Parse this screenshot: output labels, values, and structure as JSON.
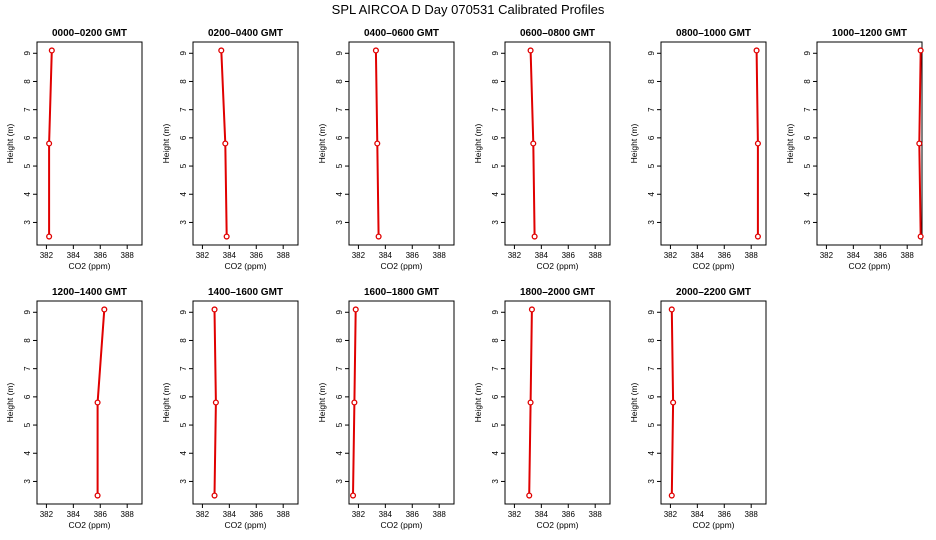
{
  "title": "SPL AIRCOA D  Day 070531  Calibrated Profiles",
  "colors": {
    "profile": "#e00000",
    "axis": "#000000",
    "background": "#ffffff"
  },
  "chart_data": [
    {
      "type": "line",
      "title": "0000–0200 GMT",
      "xlabel": "CO2 (ppm)",
      "ylabel": "Height (m)",
      "xlim": [
        381.3,
        389.1
      ],
      "ylim": [
        2.2,
        9.4
      ],
      "xticks": [
        "382",
        "384",
        "386",
        "388"
      ],
      "yticks": [
        "3",
        "4",
        "5",
        "6",
        "7",
        "8",
        "9"
      ],
      "heights": [
        2.5,
        5.8,
        9.1
      ],
      "co2": [
        382.2,
        382.2,
        382.4
      ],
      "grid": false
    },
    {
      "type": "line",
      "title": "0200–0400 GMT",
      "xlabel": "CO2 (ppm)",
      "ylabel": "Height (m)",
      "xlim": [
        381.3,
        389.1
      ],
      "ylim": [
        2.2,
        9.4
      ],
      "xticks": [
        "382",
        "384",
        "386",
        "388"
      ],
      "yticks": [
        "3",
        "4",
        "5",
        "6",
        "7",
        "8",
        "9"
      ],
      "heights": [
        2.5,
        5.8,
        9.1
      ],
      "co2": [
        383.8,
        383.7,
        383.4
      ],
      "grid": false
    },
    {
      "type": "line",
      "title": "0400–0600 GMT",
      "xlabel": "CO2 (ppm)",
      "ylabel": "Height (m)",
      "xlim": [
        381.3,
        389.1
      ],
      "ylim": [
        2.2,
        9.4
      ],
      "xticks": [
        "382",
        "384",
        "386",
        "388"
      ],
      "yticks": [
        "3",
        "4",
        "5",
        "6",
        "7",
        "8",
        "9"
      ],
      "heights": [
        2.5,
        5.8,
        9.1
      ],
      "co2": [
        383.5,
        383.4,
        383.3
      ],
      "grid": false
    },
    {
      "type": "line",
      "title": "0600–0800 GMT",
      "xlabel": "CO2 (ppm)",
      "ylabel": "Height (m)",
      "xlim": [
        381.3,
        389.1
      ],
      "ylim": [
        2.2,
        9.4
      ],
      "xticks": [
        "382",
        "384",
        "386",
        "388"
      ],
      "yticks": [
        "3",
        "4",
        "5",
        "6",
        "7",
        "8",
        "9"
      ],
      "heights": [
        2.5,
        5.8,
        9.1
      ],
      "co2": [
        383.5,
        383.4,
        383.2
      ],
      "grid": false
    },
    {
      "type": "line",
      "title": "0800–1000 GMT",
      "xlabel": "CO2 (ppm)",
      "ylabel": "Height (m)",
      "xlim": [
        381.3,
        389.1
      ],
      "ylim": [
        2.2,
        9.4
      ],
      "xticks": [
        "382",
        "384",
        "386",
        "388"
      ],
      "yticks": [
        "3",
        "4",
        "5",
        "6",
        "7",
        "8",
        "9"
      ],
      "heights": [
        2.5,
        5.8,
        9.1
      ],
      "co2": [
        388.5,
        388.5,
        388.4
      ],
      "grid": false
    },
    {
      "type": "line",
      "title": "1000–1200 GMT",
      "xlabel": "CO2 (ppm)",
      "ylabel": "Height (m)",
      "xlim": [
        381.3,
        389.1
      ],
      "ylim": [
        2.2,
        9.4
      ],
      "xticks": [
        "382",
        "384",
        "386",
        "388"
      ],
      "yticks": [
        "3",
        "4",
        "5",
        "6",
        "7",
        "8",
        "9"
      ],
      "heights": [
        2.5,
        5.8,
        9.1
      ],
      "co2": [
        389.0,
        388.9,
        389.0
      ],
      "grid": false
    },
    {
      "type": "line",
      "title": "1200–1400 GMT",
      "xlabel": "CO2 (ppm)",
      "ylabel": "Height (m)",
      "xlim": [
        381.3,
        389.1
      ],
      "ylim": [
        2.2,
        9.4
      ],
      "xticks": [
        "382",
        "384",
        "386",
        "388"
      ],
      "yticks": [
        "3",
        "4",
        "5",
        "6",
        "7",
        "8",
        "9"
      ],
      "heights": [
        2.5,
        5.8,
        9.1
      ],
      "co2": [
        385.8,
        385.8,
        386.3
      ],
      "grid": false
    },
    {
      "type": "line",
      "title": "1400–1600 GMT",
      "xlabel": "CO2 (ppm)",
      "ylabel": "Height (m)",
      "xlim": [
        381.3,
        389.1
      ],
      "ylim": [
        2.2,
        9.4
      ],
      "xticks": [
        "382",
        "384",
        "386",
        "388"
      ],
      "yticks": [
        "3",
        "4",
        "5",
        "6",
        "7",
        "8",
        "9"
      ],
      "heights": [
        2.5,
        5.8,
        9.1
      ],
      "co2": [
        382.9,
        383.0,
        382.9
      ],
      "grid": false
    },
    {
      "type": "line",
      "title": "1600–1800 GMT",
      "xlabel": "CO2 (ppm)",
      "ylabel": "Height (m)",
      "xlim": [
        381.3,
        389.1
      ],
      "ylim": [
        2.2,
        9.4
      ],
      "xticks": [
        "382",
        "384",
        "386",
        "388"
      ],
      "yticks": [
        "3",
        "4",
        "5",
        "6",
        "7",
        "8",
        "9"
      ],
      "heights": [
        2.5,
        5.8,
        9.1
      ],
      "co2": [
        381.6,
        381.7,
        381.8
      ],
      "grid": false
    },
    {
      "type": "line",
      "title": "1800–2000 GMT",
      "xlabel": "CO2 (ppm)",
      "ylabel": "Height (m)",
      "xlim": [
        381.3,
        389.1
      ],
      "ylim": [
        2.2,
        9.4
      ],
      "xticks": [
        "382",
        "384",
        "386",
        "388"
      ],
      "yticks": [
        "3",
        "4",
        "5",
        "6",
        "7",
        "8",
        "9"
      ],
      "heights": [
        2.5,
        5.8,
        9.1
      ],
      "co2": [
        383.1,
        383.2,
        383.3
      ],
      "grid": false
    },
    {
      "type": "line",
      "title": "2000–2200 GMT",
      "xlabel": "CO2 (ppm)",
      "ylabel": "Height (m)",
      "xlim": [
        381.3,
        389.1
      ],
      "ylim": [
        2.2,
        9.4
      ],
      "xticks": [
        "382",
        "384",
        "386",
        "388"
      ],
      "yticks": [
        "3",
        "4",
        "5",
        "6",
        "7",
        "8",
        "9"
      ],
      "heights": [
        2.5,
        5.8,
        9.1
      ],
      "co2": [
        382.1,
        382.2,
        382.1
      ],
      "grid": false
    }
  ]
}
